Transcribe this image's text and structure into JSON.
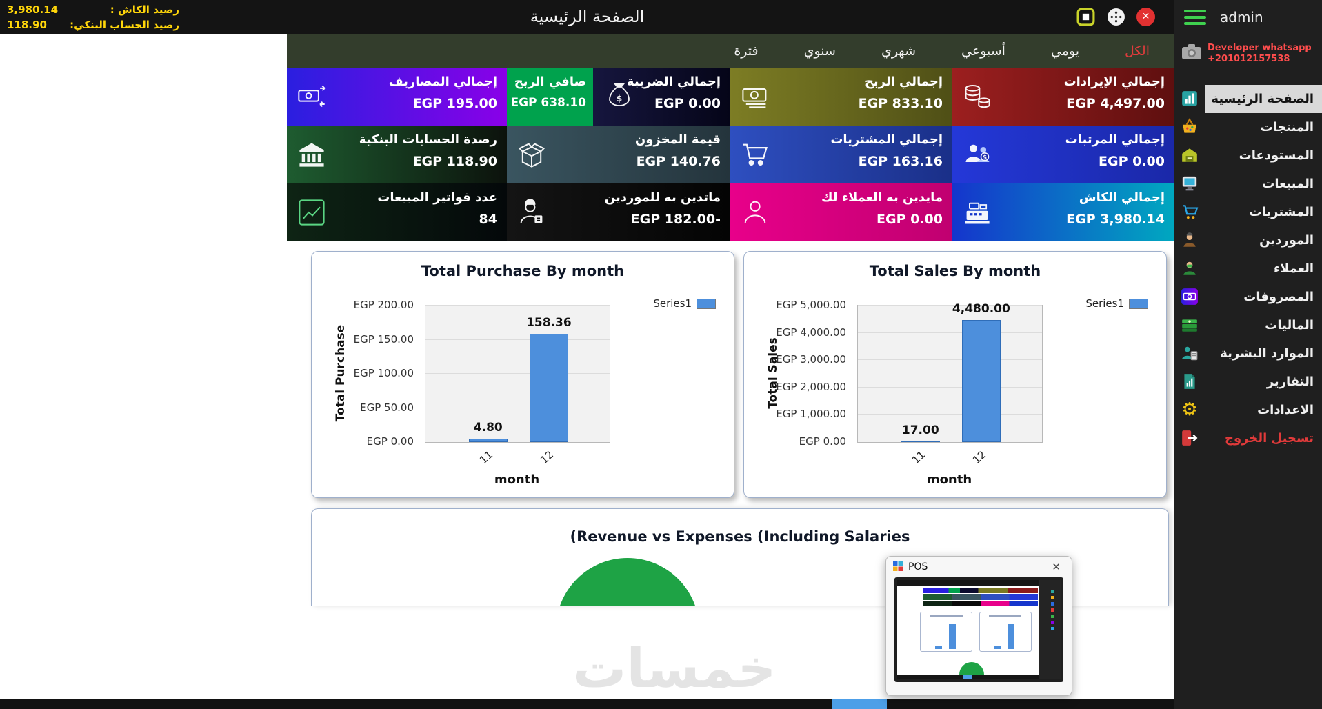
{
  "topbar": {
    "title": "الصفحة الرئيسية",
    "balances": [
      {
        "label": "رصيد الكاش :",
        "value": "3,980.14"
      },
      {
        "label": "رصيد الحساب البنكي:",
        "value": "118.90"
      }
    ]
  },
  "icons": {
    "close": "✕",
    "settings": "⚙"
  },
  "sidebar": {
    "user": "admin",
    "developer_line1": "Developer whatsapp",
    "developer_line2": "+201012157538",
    "items": [
      {
        "label": "الصفحة الرئيسية"
      },
      {
        "label": "المنتجات"
      },
      {
        "label": "المستودعات"
      },
      {
        "label": "المبيعات"
      },
      {
        "label": "المشتريات"
      },
      {
        "label": "الموردين"
      },
      {
        "label": "العملاء"
      },
      {
        "label": "المصروفات"
      },
      {
        "label": "الماليات"
      },
      {
        "label": "الموارد البشرية"
      },
      {
        "label": "التقارير"
      },
      {
        "label": "الاعدادات"
      },
      {
        "label": "تسجيل الخروج"
      }
    ]
  },
  "tabs": [
    {
      "label": "الكل"
    },
    {
      "label": "يومي"
    },
    {
      "label": "أسبوعي"
    },
    {
      "label": "شهري"
    },
    {
      "label": "سنوي"
    },
    {
      "label": "فترة"
    }
  ],
  "kpis": {
    "row1": [
      {
        "title": "إجمالي الإيرادات",
        "value": "EGP 4,497.00"
      },
      {
        "title": "إجمالي الربح",
        "value": "EGP 833.10"
      },
      {
        "title": "إجمالي الضريبة",
        "value": "EGP 0.00"
      },
      {
        "title": "صافي الربح",
        "value": "EGP 638.10"
      },
      {
        "title": "إجمالي المصاريف",
        "value": "EGP 195.00"
      }
    ],
    "row2": [
      {
        "title": "إجمالي المرتبات",
        "value": "EGP 0.00"
      },
      {
        "title": "إجمالي المشتريات",
        "value": "EGP 163.16"
      },
      {
        "title": "قيمة المخزون",
        "value": "EGP 140.76"
      },
      {
        "title": "رصدة الحسابات البنكية",
        "value": "EGP 118.90"
      }
    ],
    "row3": [
      {
        "title": "إجمالي الكاش",
        "value": "EGP 3,980.14"
      },
      {
        "title": "مايدين به العملاء لك",
        "value": "EGP 0.00"
      },
      {
        "title": "ماتدين به للموردين",
        "value": "EGP 182.00-"
      },
      {
        "title": "عدد فواتير المبيعات",
        "value": "84"
      }
    ]
  },
  "chart_data": [
    {
      "type": "bar",
      "title": "Total Purchase By month",
      "legend": "Series1",
      "legend_position": "right",
      "categories": [
        "11",
        "12"
      ],
      "values": [
        4.8,
        158.36
      ],
      "value_labels": [
        "4.80",
        "158.36"
      ],
      "xlabel": "month",
      "ylabel": "Total Purchase",
      "ylim": [
        0,
        200
      ],
      "yticks": [
        "EGP 0.00",
        "EGP 50.00",
        "EGP 100.00",
        "EGP 150.00",
        "EGP 200.00"
      ],
      "bar_color": "#4d8fdc",
      "grid": true
    },
    {
      "type": "bar",
      "title": "Total Sales By month",
      "legend": "Series1",
      "legend_position": "right",
      "categories": [
        "11",
        "12"
      ],
      "values": [
        17,
        4480
      ],
      "value_labels": [
        "17.00",
        "4,480.00"
      ],
      "xlabel": "month",
      "ylabel": "Total Sales",
      "ylim": [
        0,
        5000
      ],
      "yticks": [
        "EGP 0.00",
        "EGP 1,000.00",
        "EGP 2,000.00",
        "EGP 3,000.00",
        "EGP 4,000.00",
        "EGP 5,000.00"
      ],
      "bar_color": "#4d8fdc",
      "grid": true
    },
    {
      "type": "pie",
      "title": "(Revenue vs Expenses (Including Salaries",
      "slice_color": "#1ea345"
    }
  ],
  "pos_thumbnail": {
    "title": "POS"
  },
  "watermark": "خمسات"
}
